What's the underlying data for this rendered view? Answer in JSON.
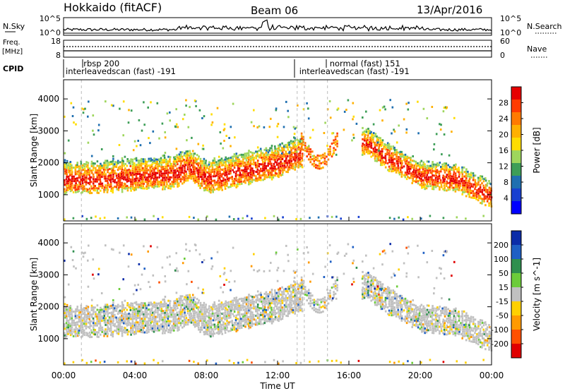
{
  "header": {
    "station": "Hokkaido (fitACF)",
    "beam": "Beam 06",
    "date": "13/Apr/2016"
  },
  "nsky_panel": {
    "left_label": "N.Sky",
    "right_label": "N.Search",
    "left_ticks": [
      "10^5",
      "10^0"
    ],
    "right_ticks": [
      "10^5",
      "10^0"
    ]
  },
  "freq_panel": {
    "left_label_1": "Freq.",
    "left_label_2": "[MHz]",
    "right_label": "Nave",
    "left_ticks": [
      "18",
      "8"
    ],
    "right_ticks": [
      "60",
      "0"
    ]
  },
  "cpid": {
    "label": "CPID",
    "entries": [
      {
        "name": "rbsp 200",
        "row": 1,
        "start_hour": 1.0
      },
      {
        "name": "interleavedscan (fast) -191",
        "row": 2,
        "start_hour": 0.0
      },
      {
        "name": "normal (fast) 151",
        "row": 1,
        "start_hour": 14.8
      },
      {
        "name": "interleavedscan (fast) -191",
        "row": 2,
        "start_hour": 13.1
      }
    ]
  },
  "chart_data": [
    {
      "type": "heatmap",
      "title": "",
      "ylabel": "Slant Range [km]",
      "xlim": [
        0,
        24
      ],
      "ylim": [
        180,
        4600
      ],
      "yticks": [
        1000,
        2000,
        3000,
        4000
      ],
      "colorbar": {
        "label": "Power [dB]",
        "ticks": [
          "28",
          "24",
          "20",
          "16",
          "12",
          "8",
          "4"
        ],
        "colors": [
          "#e60000",
          "#ff3b00",
          "#ff7a00",
          "#ffb000",
          "#ffdd00",
          "#9ed65c",
          "#3d9e57",
          "#1f6fb0",
          "#1840d0",
          "#0000ff"
        ]
      },
      "main_band": [
        {
          "hour": 0,
          "range": 1500
        },
        {
          "hour": 2,
          "range": 1500
        },
        {
          "hour": 4,
          "range": 1600
        },
        {
          "hour": 6,
          "range": 1650
        },
        {
          "hour": 7,
          "range": 1900
        },
        {
          "hour": 8,
          "range": 1500
        },
        {
          "hour": 10,
          "range": 1750
        },
        {
          "hour": 12,
          "range": 2000
        },
        {
          "hour": 13,
          "range": 2250
        }
      ],
      "late_band": [
        {
          "hour": 17,
          "range": 2650
        },
        {
          "hour": 18,
          "range": 2200
        },
        {
          "hour": 20,
          "range": 1600
        },
        {
          "hour": 22,
          "range": 1500
        },
        {
          "hour": 24,
          "range": 950
        }
      ]
    },
    {
      "type": "heatmap",
      "title": "",
      "ylabel": "Slant Range [km]",
      "xlabel": "Time UT",
      "xlim": [
        0,
        24
      ],
      "ylim": [
        180,
        4600
      ],
      "yticks": [
        1000,
        2000,
        3000,
        4000
      ],
      "xticks": [
        "00:00",
        "04:00",
        "08:00",
        "12:00",
        "16:00",
        "20:00",
        "00:00"
      ],
      "colorbar": {
        "label": "Velocity [m s^-1]",
        "ticks": [
          "200",
          "100",
          "50",
          "15",
          "-15",
          "-50",
          "-100",
          "-200"
        ],
        "colors": [
          "#0b2ca8",
          "#1e5fc4",
          "#2f8f4e",
          "#6ccc3a",
          "#c0c0c0",
          "#ffd000",
          "#ff9a00",
          "#ff5000",
          "#e00000"
        ]
      }
    }
  ]
}
